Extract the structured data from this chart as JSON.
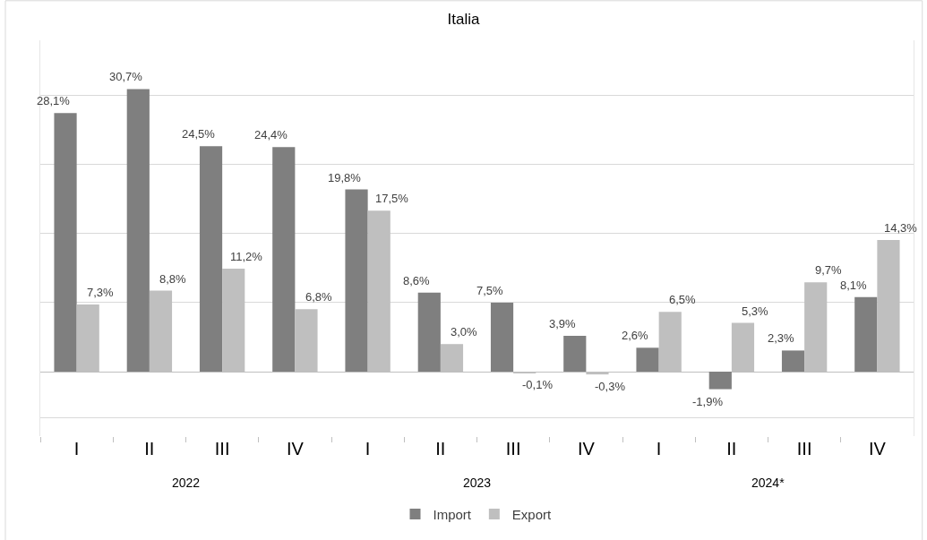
{
  "chart_data": {
    "type": "bar",
    "title": "Italia",
    "categories": [
      "I",
      "II",
      "III",
      "IV",
      "I",
      "II",
      "III",
      "IV",
      "I",
      "II",
      "III",
      "IV"
    ],
    "series": [
      {
        "name": "Import",
        "color": "#7f7f7f",
        "values": [
          28.1,
          30.7,
          24.5,
          24.4,
          19.8,
          8.6,
          7.5,
          3.9,
          2.6,
          -1.9,
          2.3,
          8.1
        ],
        "value_labels": [
          "28,1%",
          "30,7%",
          "24,5%",
          "24,4%",
          "19,8%",
          "8,6%",
          "7,5%",
          "3,9%",
          "2,6%",
          "-1,9%",
          "2,3%",
          "8,1%"
        ]
      },
      {
        "name": "Export",
        "color": "#bfbfbf",
        "values": [
          7.3,
          8.8,
          11.2,
          6.8,
          17.5,
          3.0,
          -0.1,
          -0.3,
          6.5,
          5.3,
          9.7,
          14.3
        ],
        "value_labels": [
          "7,3%",
          "8,8%",
          "11,2%",
          "6,8%",
          "17,5%",
          "3,0%",
          "-0,1%",
          "-0,3%",
          "6,5%",
          "5,3%",
          "9,7%",
          "14,3%"
        ]
      }
    ],
    "ylim": [
      -7,
      36
    ],
    "yticks": [
      {
        "value": -5,
        "label": null
      },
      {
        "value": 7.5,
        "label": null
      },
      {
        "value": 15,
        "label": null
      },
      {
        "value": 22.5,
        "label": null
      },
      {
        "value": 30,
        "label": null
      }
    ],
    "annotations": [
      "2022",
      "2023",
      "2024*"
    ],
    "grid": "y",
    "legend": "bottom",
    "tick_labels": "x"
  }
}
